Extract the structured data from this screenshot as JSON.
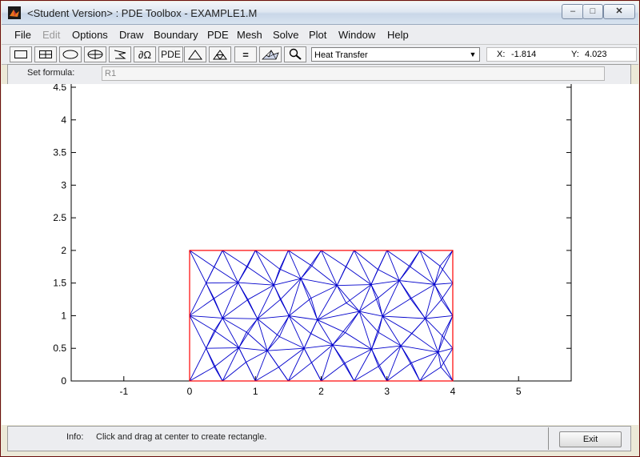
{
  "window": {
    "title": "<Student Version> : PDE Toolbox - EXAMPLE1.M",
    "app_icon": "matlab-logo-icon",
    "controls": {
      "minimize": "minimize-icon",
      "maximize": "maximize-icon",
      "close": "close-icon"
    }
  },
  "menu": [
    "File",
    "Edit",
    "Options",
    "Draw",
    "Boundary",
    "PDE",
    "Mesh",
    "Solve",
    "Plot",
    "Window",
    "Help"
  ],
  "menu_disabled": [
    "Edit"
  ],
  "toolbar": {
    "buttons": [
      "rectangle-icon",
      "center-rectangle-icon",
      "ellipse-icon",
      "center-ellipse-icon",
      "polygon-icon",
      "boundary-mode-icon",
      "pde-spec-icon",
      "init-mesh-icon",
      "refine-mesh-icon",
      "solve-icon",
      "plot-icon",
      "zoom-icon"
    ],
    "boundary_label": "∂Ω",
    "pde_label": "PDE",
    "solve_label": "=",
    "application": "Heat Transfer",
    "x_label": "X:",
    "x_value": "-1.814",
    "y_label": "Y:",
    "y_value": "4.023"
  },
  "formula": {
    "label": "Set formula:",
    "value": "R1"
  },
  "plot": {
    "xlim": [
      -1.8,
      5.8
    ],
    "ylim": [
      0,
      4.5
    ],
    "x_ticks": [
      "-1",
      "0",
      "1",
      "2",
      "3",
      "4",
      "5"
    ],
    "y_ticks": [
      "0",
      "0.5",
      "1",
      "1.5",
      "2",
      "2.5",
      "3",
      "3.5",
      "4",
      "4.5"
    ],
    "rectangle": {
      "x0": 0,
      "y0": 0,
      "x1": 4,
      "y1": 2
    },
    "boundary_color": "#ff0000",
    "mesh_color": "#0000cc"
  },
  "status": {
    "info_label": "Info:",
    "info_text": "Click and drag at center to create rectangle.",
    "exit_label": "Exit"
  }
}
